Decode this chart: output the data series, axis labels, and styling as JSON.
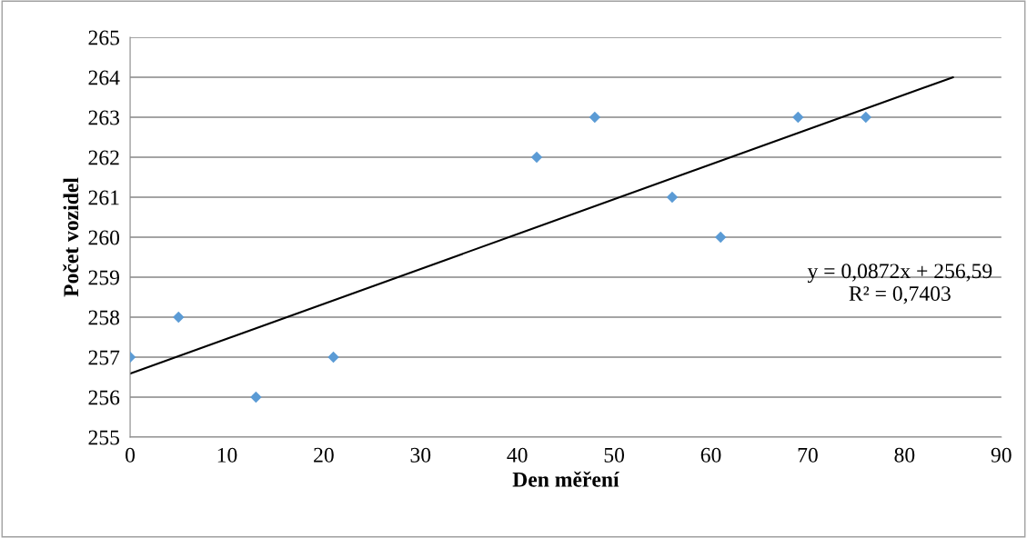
{
  "chart_data": {
    "type": "scatter",
    "xlabel": "Den měření",
    "ylabel": "Počet vozidel",
    "series": [
      {
        "color": "#5b9bd5",
        "marker": "diamond",
        "x": [
          0,
          5,
          13,
          21,
          42,
          48,
          56,
          61,
          69,
          76
        ],
        "values": [
          257,
          258,
          256,
          257,
          262,
          263,
          261,
          260,
          263,
          263
        ]
      },
      {
        "type": "line",
        "color": "#000000",
        "marker": "none",
        "line_style": "solid",
        "x": [
          0,
          85
        ],
        "values": [
          256.59,
          264
        ]
      }
    ],
    "xlim": [
      0,
      90
    ],
    "xticks": [
      0,
      10,
      20,
      30,
      40,
      50,
      60,
      70,
      80,
      90
    ],
    "ylim": [
      255,
      265
    ],
    "yticks": [
      255,
      256,
      257,
      258,
      259,
      260,
      261,
      262,
      263,
      264,
      265
    ],
    "grid": "y",
    "annotations": [
      "y = 0,0872x + 256,59\nR² = 0,7403"
    ]
  }
}
